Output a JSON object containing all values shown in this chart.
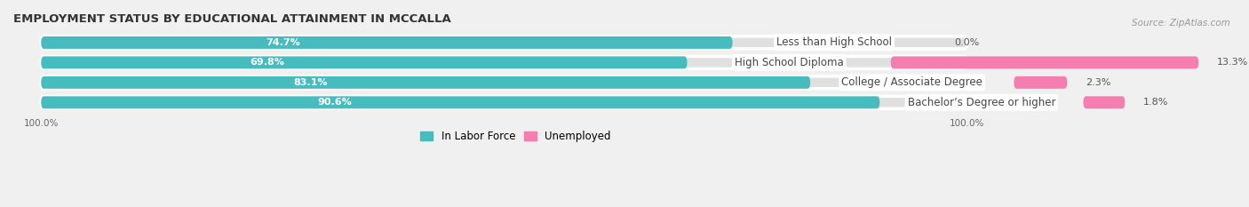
{
  "title": "EMPLOYMENT STATUS BY EDUCATIONAL ATTAINMENT IN MCCALLA",
  "source": "Source: ZipAtlas.com",
  "categories": [
    "Less than High School",
    "High School Diploma",
    "College / Associate Degree",
    "Bachelor’s Degree or higher"
  ],
  "labor_force": [
    74.7,
    69.8,
    83.1,
    90.6
  ],
  "unemployed": [
    0.0,
    13.3,
    2.3,
    1.8
  ],
  "labor_color": "#46BCBE",
  "unemployed_color": "#F47EB0",
  "background_color": "#f0f0f0",
  "bar_bg_color": "#e0e0e0",
  "title_fontsize": 9.5,
  "source_fontsize": 7.5,
  "label_fontsize": 8.5,
  "pct_fontsize": 8.0,
  "tick_fontsize": 7.5,
  "legend_fontsize": 8.5
}
